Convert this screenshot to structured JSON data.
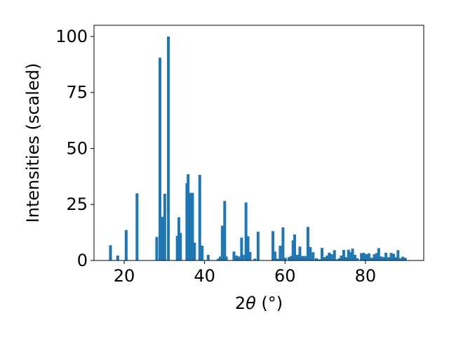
{
  "chart_data": {
    "type": "bar",
    "title": "",
    "xlabel_parts": {
      "prefix": "2",
      "symbol": "θ",
      "unit": " (°)"
    },
    "ylabel": "Intensities (scaled)",
    "xlim": [
      12.5,
      94.5
    ],
    "ylim": [
      0,
      105
    ],
    "bar_width": 0.7,
    "x_ticks": [
      20,
      40,
      60,
      80
    ],
    "x_tick_labels": [
      "20",
      "40",
      "60",
      "80"
    ],
    "y_ticks": [
      0,
      25,
      50,
      75,
      100
    ],
    "y_tick_labels": [
      "0",
      "25",
      "50",
      "75",
      "100"
    ],
    "grid": false,
    "legend": "none",
    "bar_color": "#1f77b4",
    "points": [
      {
        "x": 16.6,
        "y": 6.8
      },
      {
        "x": 18.4,
        "y": 2.2
      },
      {
        "x": 20.5,
        "y": 13.6
      },
      {
        "x": 23.2,
        "y": 30.0
      },
      {
        "x": 28.1,
        "y": 10.5
      },
      {
        "x": 28.9,
        "y": 90.5
      },
      {
        "x": 29.5,
        "y": 19.5
      },
      {
        "x": 30.1,
        "y": 29.8
      },
      {
        "x": 31.0,
        "y": 100.0
      },
      {
        "x": 33.2,
        "y": 11.0
      },
      {
        "x": 33.6,
        "y": 19.3
      },
      {
        "x": 34.0,
        "y": 12.3
      },
      {
        "x": 35.6,
        "y": 34.5
      },
      {
        "x": 35.9,
        "y": 38.5
      },
      {
        "x": 36.5,
        "y": 30.2
      },
      {
        "x": 37.0,
        "y": 30.2
      },
      {
        "x": 37.5,
        "y": 8.0
      },
      {
        "x": 38.8,
        "y": 38.2
      },
      {
        "x": 39.4,
        "y": 6.6
      },
      {
        "x": 40.9,
        "y": 2.5
      },
      {
        "x": 43.4,
        "y": 0.8
      },
      {
        "x": 43.9,
        "y": 1.8
      },
      {
        "x": 44.4,
        "y": 15.5
      },
      {
        "x": 45.0,
        "y": 26.6
      },
      {
        "x": 45.4,
        "y": 1.8
      },
      {
        "x": 47.3,
        "y": 4.0
      },
      {
        "x": 47.9,
        "y": 2.2
      },
      {
        "x": 48.5,
        "y": 1.8
      },
      {
        "x": 49.2,
        "y": 10.2
      },
      {
        "x": 49.6,
        "y": 2.5
      },
      {
        "x": 50.3,
        "y": 25.9
      },
      {
        "x": 50.8,
        "y": 10.8
      },
      {
        "x": 51.3,
        "y": 3.8
      },
      {
        "x": 52.5,
        "y": 0.8
      },
      {
        "x": 53.3,
        "y": 12.8
      },
      {
        "x": 57.0,
        "y": 13.1
      },
      {
        "x": 57.5,
        "y": 4.0
      },
      {
        "x": 58.1,
        "y": 0.8
      },
      {
        "x": 58.8,
        "y": 6.6
      },
      {
        "x": 59.5,
        "y": 14.8
      },
      {
        "x": 60.1,
        "y": 1.2
      },
      {
        "x": 61.0,
        "y": 1.5
      },
      {
        "x": 61.5,
        "y": 2.0
      },
      {
        "x": 62.0,
        "y": 9.0
      },
      {
        "x": 62.4,
        "y": 11.6
      },
      {
        "x": 63.0,
        "y": 2.5
      },
      {
        "x": 63.7,
        "y": 6.2
      },
      {
        "x": 64.4,
        "y": 2.0
      },
      {
        "x": 65.0,
        "y": 2.0
      },
      {
        "x": 65.7,
        "y": 15.0
      },
      {
        "x": 66.3,
        "y": 6.0
      },
      {
        "x": 67.0,
        "y": 3.7
      },
      {
        "x": 67.8,
        "y": 1.0
      },
      {
        "x": 68.5,
        "y": 0.5
      },
      {
        "x": 69.2,
        "y": 5.6
      },
      {
        "x": 69.9,
        "y": 1.5
      },
      {
        "x": 70.5,
        "y": 2.2
      },
      {
        "x": 71.0,
        "y": 3.5
      },
      {
        "x": 71.6,
        "y": 2.8
      },
      {
        "x": 72.3,
        "y": 4.6
      },
      {
        "x": 72.9,
        "y": 0.5
      },
      {
        "x": 73.5,
        "y": 1.0
      },
      {
        "x": 74.0,
        "y": 2.2
      },
      {
        "x": 74.6,
        "y": 4.7
      },
      {
        "x": 75.2,
        "y": 1.5
      },
      {
        "x": 75.8,
        "y": 4.8
      },
      {
        "x": 76.3,
        "y": 3.7
      },
      {
        "x": 76.8,
        "y": 5.3
      },
      {
        "x": 77.4,
        "y": 2.5
      },
      {
        "x": 78.0,
        "y": 1.0
      },
      {
        "x": 79.0,
        "y": 3.3
      },
      {
        "x": 79.6,
        "y": 3.4
      },
      {
        "x": 80.2,
        "y": 2.8
      },
      {
        "x": 80.9,
        "y": 3.2
      },
      {
        "x": 81.6,
        "y": 1.2
      },
      {
        "x": 82.2,
        "y": 2.8
      },
      {
        "x": 82.8,
        "y": 3.3
      },
      {
        "x": 83.3,
        "y": 5.5
      },
      {
        "x": 83.9,
        "y": 1.8
      },
      {
        "x": 84.5,
        "y": 1.5
      },
      {
        "x": 85.1,
        "y": 3.5
      },
      {
        "x": 85.8,
        "y": 1.5
      },
      {
        "x": 86.4,
        "y": 3.4
      },
      {
        "x": 87.0,
        "y": 3.0
      },
      {
        "x": 87.6,
        "y": 1.5
      },
      {
        "x": 88.1,
        "y": 4.6
      },
      {
        "x": 88.7,
        "y": 1.0
      },
      {
        "x": 89.3,
        "y": 1.7
      },
      {
        "x": 89.9,
        "y": 1.2
      }
    ]
  }
}
